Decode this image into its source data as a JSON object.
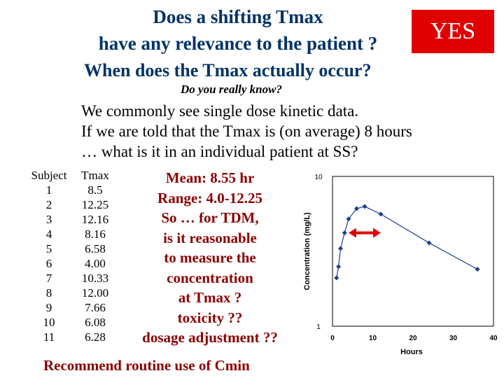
{
  "slide": {
    "title_line1": "Does a shifting Tmax",
    "title_line2": "have any relevance to the patient ?",
    "yes_label": "YES",
    "subtitle": "When does the Tmax actually occur?",
    "note": "Do you really know?",
    "body_lines": [
      "We commonly see single dose kinetic data.",
      "If we are told that the Tmax is (on average) 8 hours",
      "… what is it in an individual patient at SS?"
    ],
    "table": {
      "headers": [
        "Subject",
        "Tmax"
      ],
      "rows": [
        [
          "1",
          "8.5"
        ],
        [
          "2",
          "12.25"
        ],
        [
          "3",
          "12.16"
        ],
        [
          "4",
          "8.16"
        ],
        [
          "5",
          "6.58"
        ],
        [
          "6",
          "4.00"
        ],
        [
          "7",
          "10.33"
        ],
        [
          "8",
          "12.00"
        ],
        [
          "9",
          "7.66"
        ],
        [
          "10",
          "6.08"
        ],
        [
          "11",
          "6.28"
        ]
      ]
    },
    "mean_lines": [
      "Mean: 8.55 hr",
      "Range: 4.0-12.25",
      "So … for TDM,",
      "is it reasonable",
      "to measure the",
      "concentration",
      "at Tmax ?",
      "toxicity ??",
      "dosage adjustment ??"
    ],
    "recommend": "Recommend routine use of Cmin",
    "colors": {
      "title": "#003366",
      "yes_bg": "#e00000",
      "accent": "#8b0000",
      "marker": "#1f3f8f",
      "arrow": "#e00000"
    }
  },
  "chart_data": {
    "type": "scatter",
    "xlabel": "Hours",
    "ylabel": "Concentration (mg/L)",
    "xlim": [
      0,
      40
    ],
    "ylim": [
      1,
      10
    ],
    "y_scale": "log",
    "x_ticks": [
      "0",
      "10",
      "20",
      "30",
      "40"
    ],
    "y_ticks": [
      "1",
      "10"
    ],
    "x": [
      1,
      1.5,
      2,
      3,
      4,
      6,
      8,
      12,
      24,
      36
    ],
    "y": [
      2.1,
      2.5,
      3.3,
      4.2,
      5.2,
      6.1,
      6.3,
      5.6,
      3.6,
      2.4
    ],
    "annotation": "double-headed arrow spanning approx 4–12 h"
  }
}
